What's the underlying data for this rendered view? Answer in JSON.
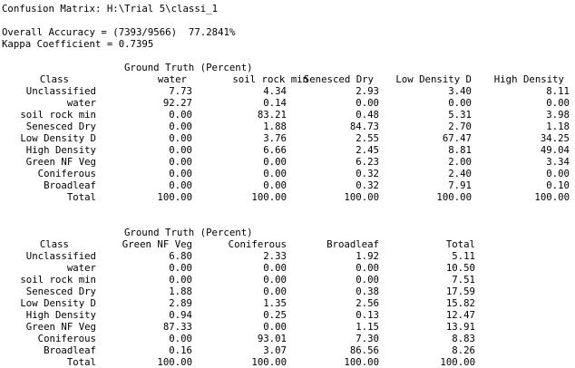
{
  "report": {
    "title": "Confusion Matrix: H:\\Trial 5\\classi_1",
    "overall_accuracy": "Overall Accuracy = (7393/9566)  77.2841%",
    "kappa": "Kappa Coefficient = 0.7395"
  },
  "table1": {
    "ground_truth_label": "Ground Truth (Percent)",
    "class_header": "Class",
    "col_headers": [
      "water",
      "soil rock min",
      "Senesced Dry",
      "Low Density D",
      "High Density"
    ],
    "rows": [
      {
        "label": "Unclassified",
        "values": [
          "7.73",
          "4.34",
          "2.93",
          "3.40",
          "8.11"
        ]
      },
      {
        "label": "water",
        "values": [
          "92.27",
          "0.14",
          "0.00",
          "0.00",
          "0.00"
        ]
      },
      {
        "label": "soil rock min",
        "values": [
          "0.00",
          "83.21",
          "0.48",
          "5.31",
          "3.98"
        ]
      },
      {
        "label": "Senesced Dry",
        "values": [
          "0.00",
          "1.88",
          "84.73",
          "2.70",
          "1.18"
        ]
      },
      {
        "label": "Low Density D",
        "values": [
          "0.00",
          "3.76",
          "2.55",
          "67.47",
          "34.25"
        ]
      },
      {
        "label": "High Density",
        "values": [
          "0.00",
          "6.66",
          "2.45",
          "8.81",
          "49.04"
        ]
      },
      {
        "label": "Green NF Veg",
        "values": [
          "0.00",
          "0.00",
          "6.23",
          "2.00",
          "3.34"
        ]
      },
      {
        "label": "Coniferous",
        "values": [
          "0.00",
          "0.00",
          "0.32",
          "2.40",
          "0.00"
        ]
      },
      {
        "label": "Broadleaf",
        "values": [
          "0.00",
          "0.00",
          "0.32",
          "7.91",
          "0.10"
        ]
      },
      {
        "label": "Total",
        "values": [
          "100.00",
          "100.00",
          "100.00",
          "100.00",
          "100.00"
        ]
      }
    ]
  },
  "table2": {
    "ground_truth_label": "Ground Truth (Percent)",
    "class_header": "Class",
    "col_headers": [
      "Green NF Veg",
      "Coniferous",
      "Broadleaf",
      "Total"
    ],
    "rows": [
      {
        "label": "Unclassified",
        "values": [
          "6.80",
          "2.33",
          "1.92",
          "5.11"
        ]
      },
      {
        "label": "water",
        "values": [
          "0.00",
          "0.00",
          "0.00",
          "10.50"
        ]
      },
      {
        "label": "soil rock min",
        "values": [
          "0.00",
          "0.00",
          "0.00",
          "7.51"
        ]
      },
      {
        "label": "Senesced Dry",
        "values": [
          "1.88",
          "0.00",
          "0.38",
          "17.59"
        ]
      },
      {
        "label": "Low Density D",
        "values": [
          "2.89",
          "1.35",
          "2.56",
          "15.82"
        ]
      },
      {
        "label": "High Density",
        "values": [
          "0.94",
          "0.25",
          "0.13",
          "12.47"
        ]
      },
      {
        "label": "Green NF Veg",
        "values": [
          "87.33",
          "0.00",
          "1.15",
          "13.91"
        ]
      },
      {
        "label": "Coniferous",
        "values": [
          "0.00",
          "93.01",
          "7.30",
          "8.83"
        ]
      },
      {
        "label": "Broadleaf",
        "values": [
          "0.16",
          "3.07",
          "86.56",
          "8.26"
        ]
      },
      {
        "label": "Total",
        "values": [
          "100.00",
          "100.00",
          "100.00",
          "100.00"
        ]
      }
    ]
  }
}
